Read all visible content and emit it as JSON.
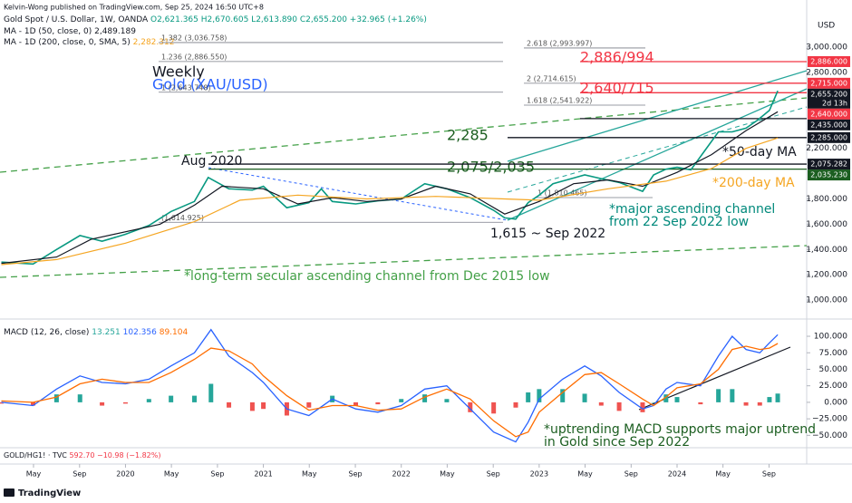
{
  "publisher": "Kelvin-Wong published on TradingView.com, Sep 25, 2024 16:50 UTC+8",
  "chart_data": [
    {
      "type": "line",
      "subtitle": "Weekly",
      "title": "Gold (XAU/USD)",
      "ohlc": "O2,621.365 H2,670.605 L2,613.890 C2,655.200 +32.965 (+1.26%)",
      "y_unit": "USD",
      "grid": false,
      "xlim": [
        2019.09,
        2024.94
      ],
      "ylim": [
        900,
        3230
      ],
      "yticks": [
        {
          "value": 3000,
          "label": "3,000.000"
        },
        {
          "value": 2800,
          "label": "2,800.000"
        },
        {
          "value": 2200,
          "label": "2,200.000"
        },
        {
          "value": 1800,
          "label": "1,800.000"
        },
        {
          "value": 1600,
          "label": "1,600.000"
        },
        {
          "value": 1400,
          "label": "1,400.000"
        },
        {
          "value": 1200,
          "label": "1,200.000"
        },
        {
          "value": 1000,
          "label": "1,000.000"
        }
      ],
      "series": [
        {
          "name": "Gold Spot / U.S. Dollar, 1W, OANDA",
          "color": "#089981",
          "x": [
            2019.1,
            2019.33,
            2019.5,
            2019.67,
            2019.83,
            2020.0,
            2020.17,
            2020.33,
            2020.5,
            2020.6,
            2020.75,
            2020.92,
            2021.0,
            2021.17,
            2021.33,
            2021.42,
            2021.5,
            2021.67,
            2021.83,
            2022.0,
            2022.17,
            2022.33,
            2022.5,
            2022.67,
            2022.75,
            2022.83,
            2022.92,
            2023.0,
            2023.1,
            2023.33,
            2023.45,
            2023.58,
            2023.75,
            2023.83,
            2023.92,
            2024.0,
            2024.1,
            2024.2,
            2024.3,
            2024.4,
            2024.5,
            2024.58,
            2024.67,
            2024.73
          ],
          "values": [
            1300,
            1285,
            1400,
            1510,
            1465,
            1520,
            1590,
            1700,
            1780,
            1970,
            1880,
            1870,
            1900,
            1730,
            1770,
            1880,
            1780,
            1760,
            1785,
            1800,
            1920,
            1880,
            1810,
            1710,
            1650,
            1640,
            1770,
            1830,
            1920,
            1990,
            1960,
            1930,
            1860,
            1990,
            2035,
            2050,
            2030,
            2180,
            2330,
            2330,
            2360,
            2420,
            2500,
            2655.2
          ]
        },
        {
          "name": "MA - 1D (50, close, 0)",
          "color": "#131722",
          "legend_value": "2,489.189",
          "x": [
            2019.1,
            2019.5,
            2019.75,
            2020.25,
            2020.5,
            2020.7,
            2021.0,
            2021.25,
            2021.5,
            2021.75,
            2022.0,
            2022.25,
            2022.5,
            2022.75,
            2023.0,
            2023.25,
            2023.5,
            2023.75,
            2024.0,
            2024.25,
            2024.5,
            2024.73
          ],
          "values": [
            1290,
            1340,
            1480,
            1600,
            1750,
            1900,
            1880,
            1760,
            1810,
            1780,
            1800,
            1900,
            1840,
            1680,
            1780,
            1920,
            1950,
            1900,
            2010,
            2150,
            2340,
            2489.189
          ]
        },
        {
          "name": "MA - 1D (200, close, 0, SMA, 5)",
          "color": "#f5a623",
          "legend_value": "2,282.312",
          "x": [
            2019.1,
            2019.5,
            2020.0,
            2020.5,
            2020.83,
            2021.25,
            2021.75,
            2022.25,
            2022.75,
            2023.0,
            2023.5,
            2023.92,
            2024.25,
            2024.5,
            2024.73
          ],
          "values": [
            1280,
            1320,
            1450,
            1620,
            1790,
            1830,
            1800,
            1820,
            1800,
            1790,
            1880,
            1940,
            2040,
            2200,
            2282.312
          ]
        }
      ],
      "levels": [
        {
          "value": 2886,
          "label": "2,886.000",
          "color": "#f23645"
        },
        {
          "value": 2715,
          "label": "2,715.000",
          "color": "#f23645"
        },
        {
          "value": 2640,
          "label": "2,640.000",
          "color": "#f23645"
        },
        {
          "value": 2435,
          "label": "2,435.000",
          "color": "#131722"
        },
        {
          "value": 2285,
          "label": "2,285.000",
          "color": "#131722"
        },
        {
          "value": 2075.282,
          "label": "2,075.282",
          "color": "#131722"
        },
        {
          "value": 2035.23,
          "label": "2,035.230",
          "color": "#1b5e20"
        }
      ],
      "current": {
        "value": 2655.2,
        "label": "2,655.200",
        "countdown": "2d 13h",
        "color": "#131722"
      },
      "fib_levels": [
        {
          "value": 3036.758,
          "label": "1.382 (3,036.758)"
        },
        {
          "value": 2993.997,
          "label": "2.618 (2,993.997)"
        },
        {
          "value": 2886.55,
          "label": "1.236 (2,886.550)"
        },
        {
          "value": 2714.615,
          "label": "2 (2,714.615)"
        },
        {
          "value": 2643.748,
          "label": "1 (2,643.748)"
        },
        {
          "value": 2541.922,
          "label": "1.618 (2,541.922)"
        },
        {
          "value": 1810.465,
          "label": "1 (1,810.465)"
        },
        {
          "value": 1614.925,
          "label": "(1,614.925)"
        }
      ],
      "annotations": [
        {
          "lines": [
            "2,886/994"
          ],
          "color": "#f23645"
        },
        {
          "lines": [
            "2,640/715"
          ],
          "color": "#f23645"
        },
        {
          "lines": [
            "2,285"
          ],
          "color": "#1b5e20"
        },
        {
          "lines": [
            "2,075/2,035"
          ],
          "color": "#1b5e20"
        },
        {
          "lines": [
            "Aug 2020"
          ],
          "color": "#131722"
        },
        {
          "lines": [
            "1,615 ~ Sep 2022"
          ],
          "color": "#131722"
        },
        {
          "lines": [
            "*major ascending channel",
            "from 22 Sep 2022 low"
          ],
          "color": "#00897b"
        },
        {
          "lines": [
            "*50-day MA"
          ],
          "color": "#131722"
        },
        {
          "lines": [
            "*200-day MA"
          ],
          "color": "#f5a623"
        },
        {
          "lines": [
            "*long-term secular ascending channel from Dec 2015 low"
          ],
          "color": "#43a047"
        }
      ]
    },
    {
      "type": "macd",
      "title": "MACD (12, 26, close)",
      "grid": false,
      "xlim": [
        2019.09,
        2024.94
      ],
      "ylim": [
        -66,
        122
      ],
      "yticks": [
        {
          "value": 100,
          "label": "100.000"
        },
        {
          "value": 75,
          "label": "75.000"
        },
        {
          "value": 50,
          "label": "50.000"
        },
        {
          "value": 25,
          "label": "25.000"
        },
        {
          "value": 0,
          "label": "0.000"
        },
        {
          "value": -25,
          "label": "−25.000"
        },
        {
          "value": -50,
          "label": "−50.000"
        }
      ],
      "xticks": [
        {
          "value": 2019.333,
          "label": "May"
        },
        {
          "value": 2019.667,
          "label": "Sep"
        },
        2020,
        {
          "value": 2020.333,
          "label": "May"
        },
        {
          "value": 2020.667,
          "label": "Sep"
        },
        2021,
        {
          "value": 2021.333,
          "label": "May"
        },
        {
          "value": 2021.667,
          "label": "Sep"
        },
        2022,
        {
          "value": 2022.333,
          "label": "May"
        },
        {
          "value": 2022.667,
          "label": "Sep"
        },
        2023,
        {
          "value": 2023.333,
          "label": "May"
        },
        {
          "value": 2023.667,
          "label": "Sep"
        },
        2024,
        {
          "value": 2024.333,
          "label": "May"
        },
        {
          "value": 2024.667,
          "label": "Sep"
        }
      ],
      "histogram": {
        "legend_value": "13.251",
        "positive_color": "#26a69a",
        "negative_color": "#ef5350",
        "x": [
          2019.1,
          2019.33,
          2019.5,
          2019.67,
          2019.83,
          2020.0,
          2020.17,
          2020.33,
          2020.5,
          2020.62,
          2020.75,
          2020.92,
          2021.0,
          2021.17,
          2021.33,
          2021.5,
          2021.67,
          2021.83,
          2022.0,
          2022.17,
          2022.33,
          2022.5,
          2022.67,
          2022.83,
          2022.92,
          2023.0,
          2023.17,
          2023.33,
          2023.45,
          2023.58,
          2023.75,
          2023.83,
          2023.92,
          2024.0,
          2024.17,
          2024.3,
          2024.4,
          2024.5,
          2024.6,
          2024.67,
          2024.73
        ],
        "values": [
          -2,
          -5,
          12,
          12,
          -5,
          -2,
          5,
          10,
          10,
          28,
          -8,
          -13,
          -10,
          -20,
          -8,
          10,
          -5,
          -3,
          5,
          12,
          5,
          -15,
          -17,
          -8,
          15,
          20,
          20,
          13,
          -5,
          -13,
          -15,
          0,
          12,
          8,
          -3,
          20,
          20,
          -5,
          -5,
          8,
          13.251
        ]
      },
      "series": [
        {
          "name": "MACD",
          "color": "#2962ff",
          "legend_value": "102.356",
          "x": [
            2019.1,
            2019.33,
            2019.5,
            2019.67,
            2019.83,
            2020.0,
            2020.17,
            2020.33,
            2020.5,
            2020.62,
            2020.75,
            2020.92,
            2021.0,
            2021.17,
            2021.33,
            2021.5,
            2021.67,
            2021.83,
            2022.0,
            2022.17,
            2022.33,
            2022.5,
            2022.67,
            2022.83,
            2022.92,
            2023.0,
            2023.17,
            2023.33,
            2023.45,
            2023.58,
            2023.75,
            2023.83,
            2023.92,
            2024.0,
            2024.17,
            2024.3,
            2024.4,
            2024.5,
            2024.6,
            2024.67,
            2024.73
          ],
          "values": [
            0,
            -5,
            20,
            40,
            30,
            28,
            35,
            55,
            75,
            110,
            70,
            45,
            30,
            -10,
            -20,
            5,
            -10,
            -15,
            -5,
            20,
            25,
            -10,
            -45,
            -60,
            -30,
            5,
            35,
            55,
            40,
            15,
            -10,
            -5,
            20,
            30,
            25,
            70,
            100,
            80,
            75,
            90,
            102.356
          ]
        },
        {
          "name": "Signal",
          "color": "#ff6d00",
          "legend_value": "89.104",
          "x": [
            2019.1,
            2019.33,
            2019.5,
            2019.67,
            2019.83,
            2020.0,
            2020.17,
            2020.33,
            2020.5,
            2020.62,
            2020.75,
            2020.92,
            2021.0,
            2021.17,
            2021.33,
            2021.5,
            2021.67,
            2021.83,
            2022.0,
            2022.17,
            2022.33,
            2022.5,
            2022.67,
            2022.83,
            2022.92,
            2023.0,
            2023.17,
            2023.33,
            2023.45,
            2023.58,
            2023.75,
            2023.83,
            2023.92,
            2024.0,
            2024.17,
            2024.3,
            2024.4,
            2024.5,
            2024.6,
            2024.67,
            2024.73
          ],
          "values": [
            2,
            0,
            8,
            28,
            35,
            30,
            30,
            45,
            65,
            82,
            78,
            58,
            40,
            10,
            -12,
            -5,
            -5,
            -12,
            -10,
            8,
            20,
            5,
            -28,
            -52,
            -45,
            -15,
            15,
            42,
            45,
            28,
            5,
            -5,
            8,
            22,
            28,
            50,
            80,
            85,
            80,
            82,
            89.104
          ]
        }
      ],
      "annotations": [
        {
          "lines": [
            "*uptrending MACD supports major uptrend",
            "in Gold since Sep 2022"
          ],
          "color": "#1b5e20"
        }
      ]
    }
  ],
  "bottom_pane": {
    "label": "GOLD/HG1! · TVC",
    "value_text": "592.70 −10.98 (−1.82%)"
  },
  "brand": "TradingView"
}
